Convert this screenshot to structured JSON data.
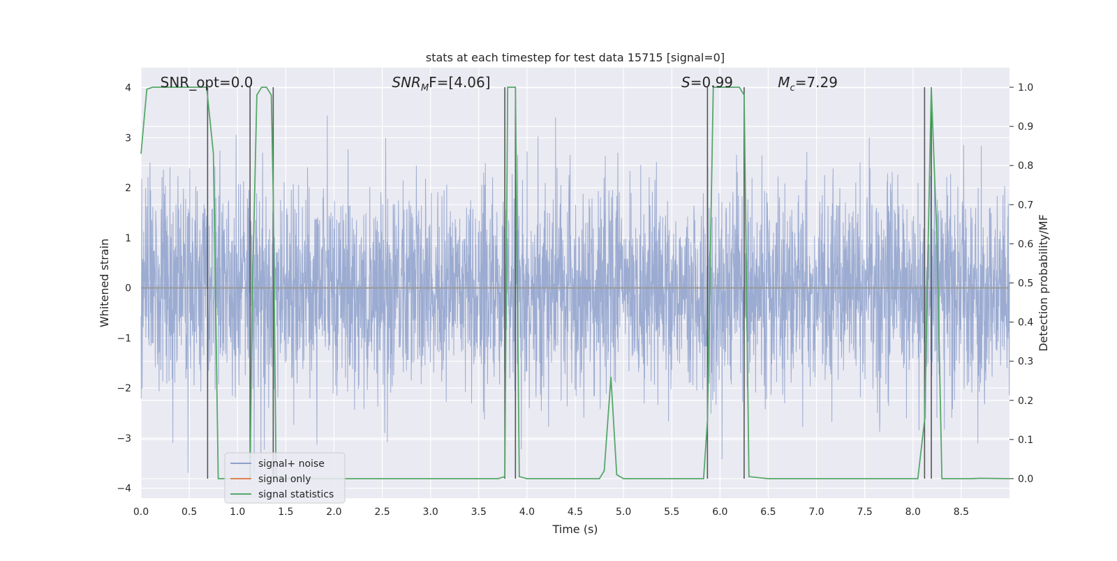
{
  "chart_data": {
    "type": "line",
    "title": "stats at each timestep for test data 15715 [signal=0]",
    "xlabel": "Time (s)",
    "ylabel": "Whitened strain",
    "y2label": "Detection probability/MF",
    "xlim": [
      0,
      9.0
    ],
    "ylim": [
      -4.2,
      4.4
    ],
    "y2lim": [
      -0.05,
      1.05
    ],
    "x_ticks": [
      0.0,
      0.5,
      1.0,
      1.5,
      2.0,
      2.5,
      3.0,
      3.5,
      4.0,
      4.5,
      5.0,
      5.5,
      6.0,
      6.5,
      7.0,
      7.5,
      8.0,
      8.5
    ],
    "x_tick_labels": [
      "0.0",
      "0.5",
      "1.0",
      "1.5",
      "2.0",
      "2.5",
      "3.0",
      "3.5",
      "4.0",
      "4.5",
      "5.0",
      "5.5",
      "6.0",
      "6.5",
      "7.0",
      "7.5",
      "8.0",
      "8.5"
    ],
    "y_ticks": [
      4,
      3,
      2,
      1,
      0,
      -1,
      -2,
      -3,
      -4
    ],
    "y_tick_labels": [
      "4",
      "3",
      "2",
      "1",
      "0",
      "−1",
      "−2",
      "−3",
      "−4"
    ],
    "y2_ticks": [
      1.0,
      0.9,
      0.8,
      0.7,
      0.6,
      0.5,
      0.4,
      0.3,
      0.2,
      0.1,
      0.0
    ],
    "y2_tick_labels": [
      "1.0",
      "0.9",
      "0.8",
      "0.7",
      "0.6",
      "0.5",
      "0.4",
      "0.3",
      "0.2",
      "0.1",
      "0.0"
    ],
    "grid": true,
    "legend_placement": "lower-left",
    "annotations": [
      {
        "prefix": "SNR_opt",
        "sub": "",
        "suffix": "=0.0",
        "x": 0.2
      },
      {
        "prefix": "SNR",
        "sub": "M",
        "suffix": "F=[4.06]",
        "x": 2.6
      },
      {
        "prefix": "S",
        "sub": "",
        "suffix": "=0.99",
        "x": 5.6
      },
      {
        "prefix": "M",
        "sub": "c",
        "suffix": "=7.29",
        "x": 6.6
      }
    ],
    "vertical_lines": [
      0.69,
      1.13,
      1.37,
      3.77,
      3.88,
      5.87,
      6.25,
      8.12,
      8.19
    ],
    "series": [
      {
        "name": "signal+ noise",
        "color": "#8da0cb",
        "envelope_sigma": 1.0,
        "x_range": [
          0,
          9.0
        ]
      },
      {
        "name": "signal only",
        "color": "#dd8452",
        "values_constant": 0.0
      },
      {
        "name": "signal statistics",
        "color": "#55a868",
        "axis": "right",
        "x": [
          0.0,
          0.06,
          0.12,
          0.2,
          0.3,
          0.4,
          0.5,
          0.6,
          0.68,
          0.75,
          0.8,
          0.9,
          1.0,
          1.1,
          1.13,
          1.15,
          1.2,
          1.25,
          1.3,
          1.35,
          1.37,
          1.4,
          1.5,
          2.0,
          2.5,
          3.0,
          3.5,
          3.7,
          3.77,
          3.8,
          3.84,
          3.88,
          3.92,
          4.0,
          4.5,
          4.75,
          4.8,
          4.87,
          4.93,
          5.0,
          5.5,
          5.83,
          5.87,
          5.93,
          6.0,
          6.2,
          6.25,
          6.3,
          6.5,
          7.0,
          7.5,
          8.05,
          8.12,
          8.19,
          8.25,
          8.3,
          8.6,
          8.7,
          9.0
        ],
        "values": [
          0.83,
          0.995,
          1.0,
          1.0,
          1.0,
          1.0,
          1.0,
          1.0,
          1.0,
          0.83,
          0.0,
          0.0,
          0.0,
          0.0,
          0.0,
          0.43,
          0.98,
          1.0,
          1.0,
          0.98,
          0.72,
          0.0,
          0.0,
          0.0,
          0.0,
          0.0,
          0.0,
          0.0,
          0.005,
          1.0,
          1.0,
          1.0,
          0.005,
          0.0,
          0.0,
          0.0,
          0.02,
          0.26,
          0.01,
          0.0,
          0.0,
          0.0,
          0.15,
          1.0,
          1.0,
          1.0,
          0.98,
          0.005,
          0.0,
          0.0,
          0.0,
          0.0,
          0.15,
          1.0,
          0.6,
          0.0,
          0.0,
          0.001,
          0.0
        ]
      }
    ]
  }
}
